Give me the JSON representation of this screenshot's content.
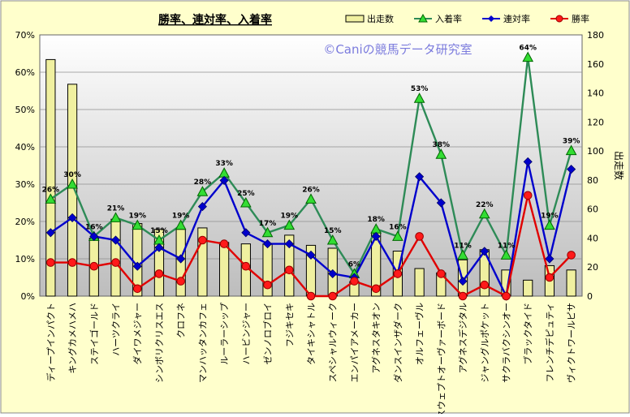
{
  "chart_data": {
    "type": "bar+line",
    "title": "勝率、連対率、入着率",
    "watermark": "©Caniの競馬データ研究室",
    "y_left": {
      "ticks": [
        "0%",
        "10%",
        "20%",
        "30%",
        "40%",
        "50%",
        "60%",
        "70%"
      ],
      "ylim": [
        0,
        70
      ],
      "unit": "%"
    },
    "y_right": {
      "label": "出走数",
      "ticks": [
        "0",
        "20",
        "40",
        "60",
        "80",
        "100",
        "120",
        "140",
        "160",
        "180"
      ],
      "ylim": [
        0,
        180
      ]
    },
    "categories": [
      "ディープインパクト",
      "キングカメハメハ",
      "ステイゴールド",
      "ハーツクライ",
      "ダイワメジャー",
      "シンボリクリスエス",
      "クロフネ",
      "マンハッタンカフェ",
      "ルーラーシップ",
      "ハービンジャー",
      "ゼンノロブロイ",
      "フジキセキ",
      "タイキシャトル",
      "スペシャルウィーク",
      "エンパイアメーカー",
      "アグネスタキオン",
      "ダンスインザダーク",
      "オルフェーヴル",
      "スウェプトオーヴァーボード",
      "アグネスデジタル",
      "ジャングルポケット",
      "サクラバクシンオー",
      "ブラックタイド",
      "フレンチデピュティ",
      "ヴィクトワールピサ"
    ],
    "series": [
      {
        "name": "出走数",
        "kind": "bar",
        "axis": "right",
        "color": "#f0f0a0",
        "values": [
          163,
          146,
          40,
          53,
          50,
          46,
          46,
          47,
          37,
          36,
          36,
          42,
          35,
          33,
          10,
          44,
          31,
          19,
          16,
          25,
          32,
          18,
          11,
          21,
          18
        ]
      },
      {
        "name": "入着率",
        "kind": "line",
        "axis": "left",
        "color": "#2e8b57",
        "values": [
          26,
          30,
          16,
          21,
          19,
          15,
          19,
          28,
          33,
          25,
          17,
          19,
          26,
          15,
          6,
          18,
          16,
          53,
          38,
          11,
          22,
          11,
          64,
          19,
          39
        ],
        "labels": [
          "26%",
          "30%",
          "16%",
          "21%",
          "19%",
          "15%",
          "19%",
          "28%",
          "33%",
          "25%",
          "17%",
          "19%",
          "26%",
          "15%",
          "6%",
          "18%",
          "16%",
          "53%",
          "38%",
          "11%",
          "22%",
          "11%",
          "64%",
          "19%",
          "39%"
        ]
      },
      {
        "name": "連対率",
        "kind": "line",
        "axis": "left",
        "color": "#0000cc",
        "values": [
          17,
          21,
          16,
          15,
          8,
          13,
          10,
          24,
          31,
          17,
          14,
          14,
          11,
          6,
          5,
          16,
          6,
          32,
          25,
          4,
          12,
          0,
          36,
          10,
          34
        ]
      },
      {
        "name": "勝率",
        "kind": "line",
        "axis": "left",
        "color": "#e00000",
        "values": [
          9,
          9,
          8,
          9,
          2,
          6,
          4,
          15,
          14,
          8,
          3,
          7,
          0,
          0,
          4,
          2,
          6,
          16,
          6,
          0,
          3,
          0,
          27,
          5,
          11
        ]
      }
    ],
    "legend_position": "top-right"
  }
}
